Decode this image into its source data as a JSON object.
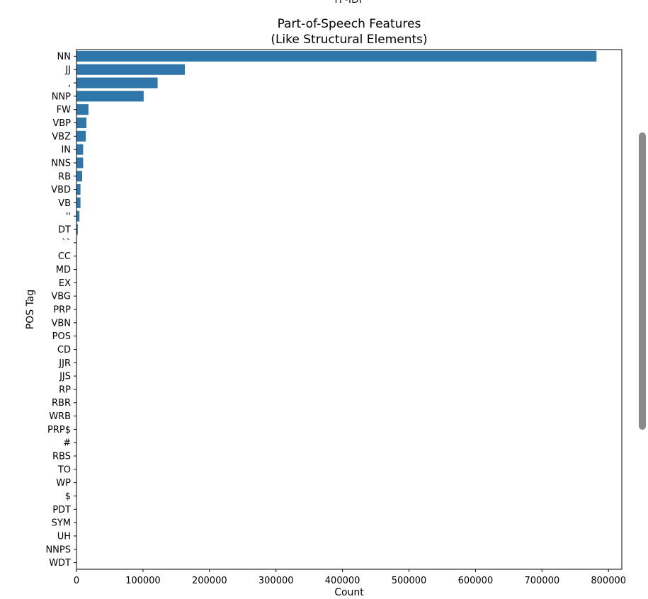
{
  "page_header": "TF-IDF",
  "colors": {
    "bar": "#2f76ab",
    "axis": "#000000",
    "scrollbar": "#8a8a8a"
  },
  "chart_data": {
    "type": "bar",
    "orientation": "horizontal",
    "title": "Part-of-Speech Features\n(Like Structural Elements)",
    "title_lines": [
      "Part-of-Speech Features",
      "(Like Structural Elements)"
    ],
    "xlabel": "Count",
    "ylabel": "POS Tag",
    "xlim": [
      0,
      820000
    ],
    "xticks": [
      0,
      100000,
      200000,
      300000,
      400000,
      500000,
      600000,
      700000,
      800000
    ],
    "grid": false,
    "categories": [
      "NN",
      "JJ",
      ",",
      "NNP",
      "FW",
      "VBP",
      "VBZ",
      "IN",
      "NNS",
      "RB",
      "VBD",
      "VB",
      "''",
      "DT",
      "``",
      "CC",
      "MD",
      "EX",
      "VBG",
      "PRP",
      "VBN",
      "POS",
      "CD",
      "JJR",
      "JJS",
      "RP",
      "RBR",
      "WRB",
      "PRP$",
      "#",
      "RBS",
      "TO",
      "WP",
      "$",
      "PDT",
      "SYM",
      "UH",
      "NNPS",
      "WDT"
    ],
    "values": [
      782000,
      163000,
      122000,
      101000,
      18000,
      15000,
      14000,
      10000,
      10000,
      8500,
      6000,
      6000,
      4500,
      2000,
      200,
      100,
      100,
      100,
      100,
      100,
      100,
      100,
      100,
      100,
      100,
      100,
      100,
      100,
      100,
      100,
      100,
      100,
      100,
      100,
      100,
      100,
      100,
      100,
      100
    ]
  }
}
